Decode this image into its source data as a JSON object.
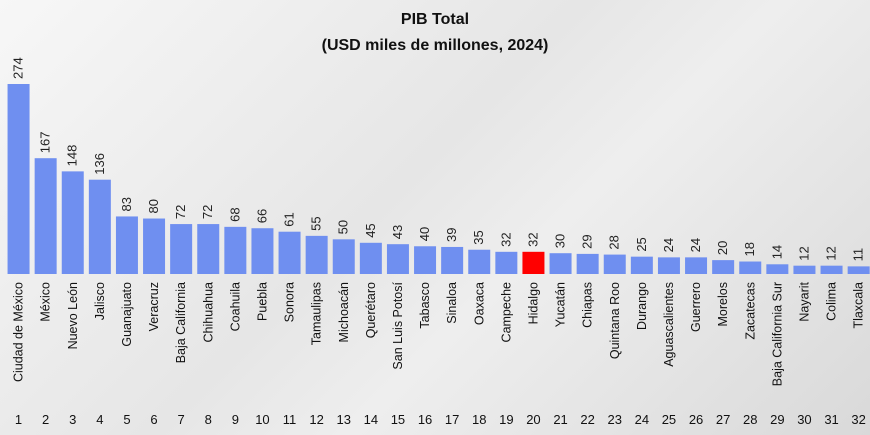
{
  "chart_data": {
    "type": "bar",
    "title": "PIB Total",
    "subtitle": "(USD miles de millones, 2024)",
    "categories": [
      "Ciudad de México",
      "México",
      "Nuevo León",
      "Jalisco",
      "Guanajuato",
      "Veracruz",
      "Baja California",
      "Chihuahua",
      "Coahuila",
      "Puebla",
      "Sonora",
      "Tamaulipas",
      "Michoacán",
      "Querétaro",
      "San Luis Potosí",
      "Tabasco",
      "Sinaloa",
      "Oaxaca",
      "Campeche",
      "Hidalgo",
      "Yucatán",
      "Chiapas",
      "Quintana Roo",
      "Durango",
      "Aguascalientes",
      "Guerrero",
      "Morelos",
      "Zacatecas",
      "Baja California Sur",
      "Nayarit",
      "Colima",
      "Tlaxcala"
    ],
    "values": [
      274,
      167,
      148,
      136,
      83,
      80,
      72,
      72,
      68,
      66,
      61,
      55,
      50,
      45,
      43,
      40,
      39,
      35,
      32,
      32,
      30,
      29,
      28,
      25,
      24,
      24,
      20,
      18,
      14,
      12,
      12,
      11
    ],
    "ranks": [
      "1",
      "2",
      "3",
      "4",
      "5",
      "6",
      "7",
      "8",
      "9",
      "10",
      "11",
      "12",
      "13",
      "14",
      "15",
      "16",
      "17",
      "18",
      "19",
      "20",
      "21",
      "22",
      "23",
      "24",
      "25",
      "26",
      "27",
      "28",
      "29",
      "30",
      "31",
      "32"
    ],
    "highlight_index": 19,
    "colors": {
      "bar": "#6f8ff0",
      "highlight": "#ff0000"
    },
    "xlabel": "",
    "ylabel": "",
    "ylim": [
      0,
      274
    ],
    "grid": false
  }
}
